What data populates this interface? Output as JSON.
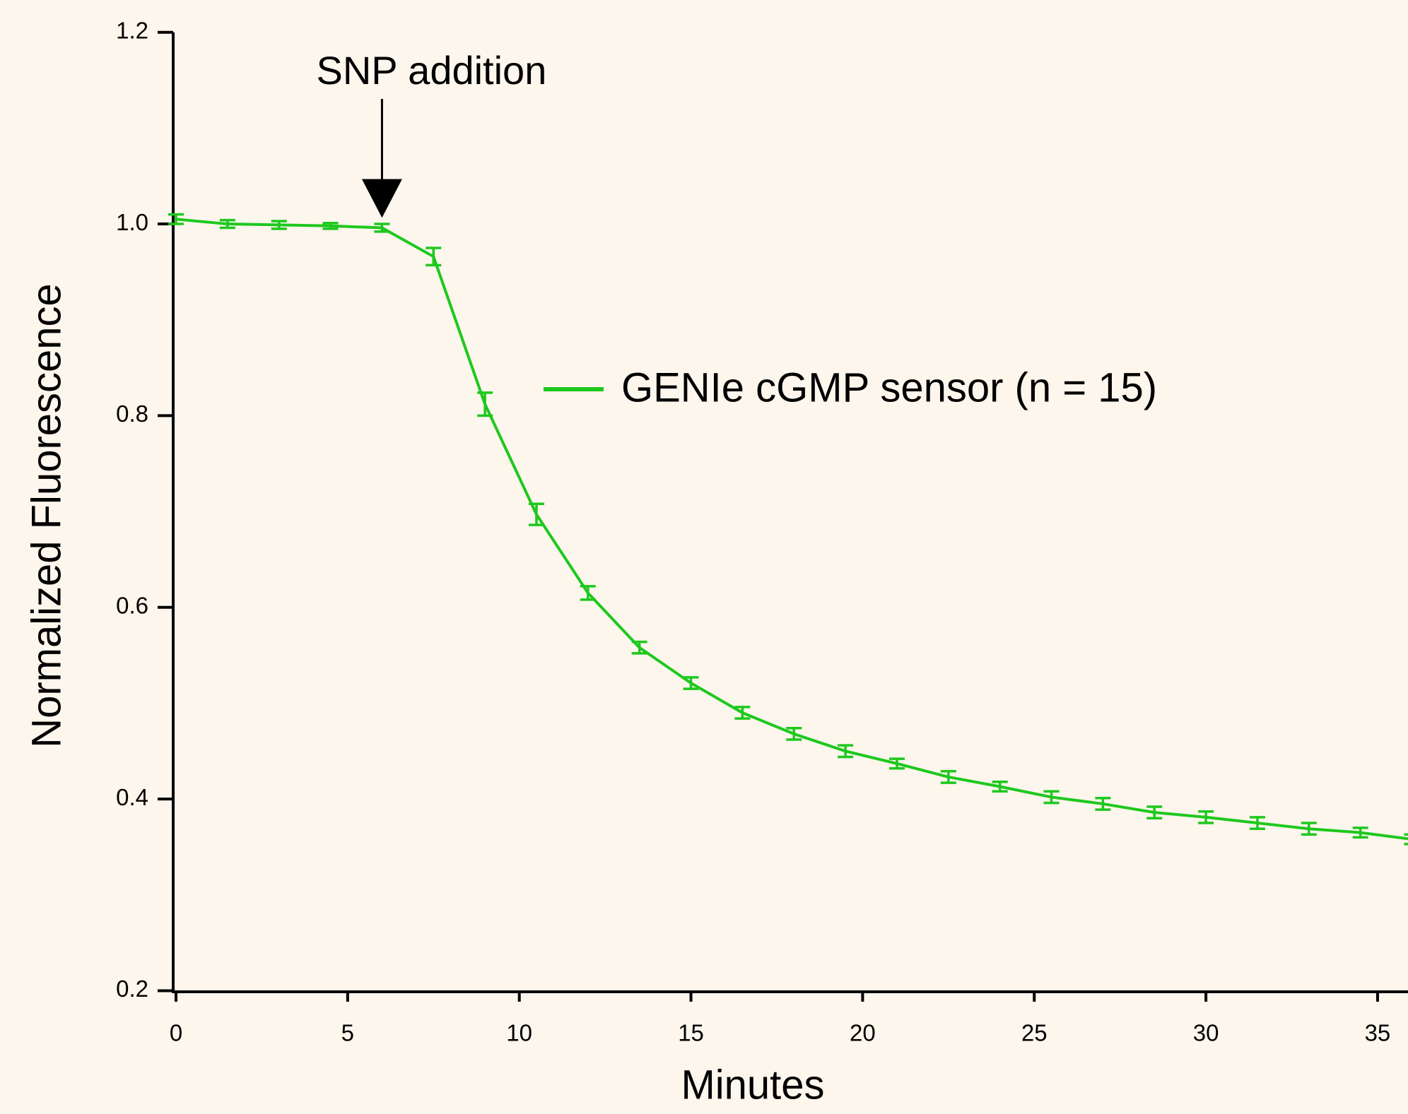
{
  "chart_data": {
    "type": "line",
    "x_label": "Minutes",
    "y_label": "Normalized Fluorescence",
    "annotation": {
      "text": "SNP addition",
      "x": 6
    },
    "x": [
      0,
      1.5,
      3,
      4.5,
      6,
      7.5,
      9,
      10.5,
      12,
      13.5,
      15,
      16.5,
      18,
      19.5,
      21,
      22.5,
      24,
      25.5,
      27,
      28.5,
      30,
      31.5,
      33,
      34.5,
      36
    ],
    "series": [
      {
        "name": "GENIe cGMP sensor (n = 15)",
        "color": "#1ec81e",
        "values": [
          1.005,
          1.0,
          0.999,
          0.998,
          0.996,
          0.966,
          0.812,
          0.697,
          0.615,
          0.558,
          0.521,
          0.49,
          0.468,
          0.45,
          0.437,
          0.423,
          0.413,
          0.402,
          0.395,
          0.386,
          0.381,
          0.375,
          0.369,
          0.365,
          0.358
        ],
        "errors": [
          0.005,
          0.004,
          0.004,
          0.003,
          0.004,
          0.009,
          0.012,
          0.011,
          0.007,
          0.006,
          0.006,
          0.006,
          0.006,
          0.006,
          0.005,
          0.006,
          0.005,
          0.006,
          0.006,
          0.006,
          0.006,
          0.006,
          0.006,
          0.005,
          0.005
        ]
      }
    ],
    "xlim": [
      0,
      36
    ],
    "ylim": [
      0.2,
      1.2
    ],
    "xticks": [
      0,
      5,
      10,
      15,
      20,
      25,
      30,
      35
    ],
    "yticks": [
      0.2,
      0.4,
      0.6,
      0.8,
      {
        "value": 1,
        "label": "1.0"
      },
      1.2
    ]
  }
}
